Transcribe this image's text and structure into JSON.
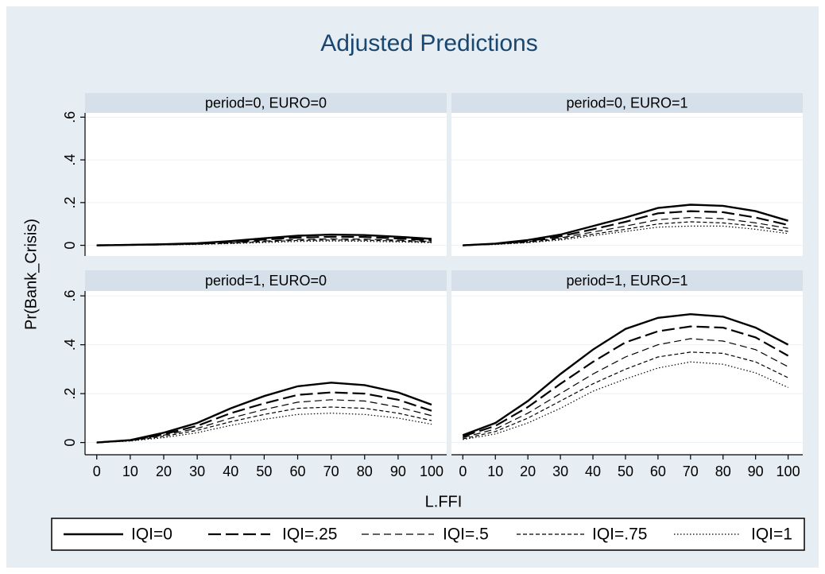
{
  "title": "Adjusted Predictions",
  "y_label": "Pr(Bank_Crisis)",
  "x_label": "L.FFI",
  "chart_data": [
    {
      "type": "line",
      "title": "period=0, EURO=0",
      "grid": true,
      "x": [
        0,
        10,
        20,
        30,
        40,
        50,
        60,
        70,
        80,
        90,
        100
      ],
      "xlim": [
        -3.5,
        104.5
      ],
      "ylim": [
        -0.05,
        0.62
      ],
      "yticks": [
        0,
        {
          "value": 0.2,
          "label": ".2"
        },
        {
          "value": 0.4,
          "label": ".4"
        },
        {
          "value": 0.6,
          "label": ".6"
        }
      ],
      "series": [
        {
          "name": "IQI=0",
          "color": "#000000",
          "line_style": "solid",
          "width": 2.4,
          "values": [
            0,
            0.002,
            0.005,
            0.01,
            0.02,
            0.033,
            0.045,
            0.05,
            0.048,
            0.04,
            0.03
          ]
        },
        {
          "name": "IQI=.25",
          "color": "#000000",
          "line_style": "long-dash",
          "width": 2.2,
          "values": [
            0,
            0.002,
            0.004,
            0.008,
            0.016,
            0.027,
            0.036,
            0.04,
            0.039,
            0.032,
            0.024
          ]
        },
        {
          "name": "IQI=.5",
          "color": "#000000",
          "line_style": "dash",
          "width": 1.2,
          "values": [
            0,
            0.001,
            0.003,
            0.006,
            0.012,
            0.02,
            0.027,
            0.03,
            0.029,
            0.024,
            0.018
          ]
        },
        {
          "name": "IQI=.75",
          "color": "#000000",
          "line_style": "short-dash",
          "width": 1.2,
          "values": [
            0,
            0.001,
            0.0025,
            0.005,
            0.01,
            0.017,
            0.023,
            0.025,
            0.024,
            0.02,
            0.015
          ]
        },
        {
          "name": "IQI=1",
          "color": "#000000",
          "line_style": "dot",
          "width": 1.2,
          "values": [
            0,
            0.001,
            0.002,
            0.004,
            0.008,
            0.013,
            0.018,
            0.02,
            0.019,
            0.016,
            0.012
          ]
        }
      ]
    },
    {
      "type": "line",
      "title": "period=0, EURO=1",
      "grid": true,
      "x": [
        0,
        10,
        20,
        30,
        40,
        50,
        60,
        70,
        80,
        90,
        100
      ],
      "xlim": [
        -3.5,
        104.5
      ],
      "ylim": [
        -0.05,
        0.62
      ],
      "yticks": [
        0,
        {
          "value": 0.2,
          "label": ".2"
        },
        {
          "value": 0.4,
          "label": ".4"
        },
        {
          "value": 0.6,
          "label": ".6"
        }
      ],
      "series": [
        {
          "name": "IQI=0",
          "color": "#000000",
          "line_style": "solid",
          "width": 2.4,
          "values": [
            0,
            0.008,
            0.025,
            0.05,
            0.09,
            0.13,
            0.175,
            0.19,
            0.185,
            0.16,
            0.115
          ]
        },
        {
          "name": "IQI=.25",
          "color": "#000000",
          "line_style": "long-dash",
          "width": 2.2,
          "values": [
            0,
            0.007,
            0.02,
            0.042,
            0.075,
            0.11,
            0.15,
            0.16,
            0.155,
            0.13,
            0.095
          ]
        },
        {
          "name": "IQI=.5",
          "color": "#000000",
          "line_style": "dash",
          "width": 1.2,
          "values": [
            0,
            0.006,
            0.017,
            0.035,
            0.062,
            0.09,
            0.12,
            0.13,
            0.125,
            0.105,
            0.08
          ]
        },
        {
          "name": "IQI=.75",
          "color": "#000000",
          "line_style": "short-dash",
          "width": 1.2,
          "values": [
            0,
            0.005,
            0.014,
            0.03,
            0.052,
            0.075,
            0.1,
            0.11,
            0.105,
            0.09,
            0.065
          ]
        },
        {
          "name": "IQI=1",
          "color": "#000000",
          "line_style": "dot",
          "width": 1.2,
          "values": [
            0,
            0.004,
            0.012,
            0.025,
            0.045,
            0.065,
            0.085,
            0.09,
            0.09,
            0.075,
            0.055
          ]
        }
      ]
    },
    {
      "type": "line",
      "title": "period=1, EURO=0",
      "grid": true,
      "x": [
        0,
        10,
        20,
        30,
        40,
        50,
        60,
        70,
        80,
        90,
        100
      ],
      "xlim": [
        -3.5,
        104.5
      ],
      "xticks": [
        0,
        10,
        20,
        30,
        40,
        50,
        60,
        70,
        80,
        90,
        100
      ],
      "ylim": [
        -0.05,
        0.62
      ],
      "yticks": [
        0,
        {
          "value": 0.2,
          "label": ".2"
        },
        {
          "value": 0.4,
          "label": ".4"
        },
        {
          "value": 0.6,
          "label": ".6"
        }
      ],
      "series": [
        {
          "name": "IQI=0",
          "color": "#000000",
          "line_style": "solid",
          "width": 2.4,
          "values": [
            0,
            0.01,
            0.04,
            0.08,
            0.14,
            0.19,
            0.23,
            0.245,
            0.235,
            0.205,
            0.155
          ]
        },
        {
          "name": "IQI=.25",
          "color": "#000000",
          "line_style": "long-dash",
          "width": 2.2,
          "values": [
            0,
            0.009,
            0.034,
            0.068,
            0.12,
            0.16,
            0.195,
            0.205,
            0.2,
            0.175,
            0.13
          ]
        },
        {
          "name": "IQI=.5",
          "color": "#000000",
          "line_style": "dash",
          "width": 1.2,
          "values": [
            0,
            0.008,
            0.03,
            0.058,
            0.1,
            0.135,
            0.165,
            0.175,
            0.17,
            0.145,
            0.11
          ]
        },
        {
          "name": "IQI=.75",
          "color": "#000000",
          "line_style": "short-dash",
          "width": 1.2,
          "values": [
            0,
            0.007,
            0.025,
            0.05,
            0.085,
            0.115,
            0.14,
            0.145,
            0.14,
            0.12,
            0.09
          ]
        },
        {
          "name": "IQI=1",
          "color": "#000000",
          "line_style": "dot",
          "width": 1.2,
          "values": [
            0,
            0.006,
            0.02,
            0.04,
            0.07,
            0.095,
            0.115,
            0.12,
            0.115,
            0.1,
            0.075
          ]
        }
      ]
    },
    {
      "type": "line",
      "title": "period=1, EURO=1",
      "grid": true,
      "x": [
        0,
        10,
        20,
        30,
        40,
        50,
        60,
        70,
        80,
        90,
        100
      ],
      "xlim": [
        -3.5,
        104.5
      ],
      "xticks": [
        0,
        10,
        20,
        30,
        40,
        50,
        60,
        70,
        80,
        90,
        100
      ],
      "ylim": [
        -0.05,
        0.62
      ],
      "yticks": [
        0,
        {
          "value": 0.2,
          "label": ".2"
        },
        {
          "value": 0.4,
          "label": ".4"
        },
        {
          "value": 0.6,
          "label": ".6"
        }
      ],
      "series": [
        {
          "name": "IQI=0",
          "color": "#000000",
          "line_style": "solid",
          "width": 2.4,
          "values": [
            0.03,
            0.08,
            0.17,
            0.28,
            0.38,
            0.465,
            0.51,
            0.525,
            0.515,
            0.47,
            0.4
          ]
        },
        {
          "name": "IQI=.25",
          "color": "#000000",
          "line_style": "long-dash",
          "width": 2.2,
          "values": [
            0.025,
            0.068,
            0.145,
            0.24,
            0.33,
            0.41,
            0.455,
            0.475,
            0.47,
            0.43,
            0.355
          ]
        },
        {
          "name": "IQI=.5",
          "color": "#000000",
          "line_style": "dash",
          "width": 1.2,
          "values": [
            0.02,
            0.055,
            0.12,
            0.2,
            0.28,
            0.35,
            0.4,
            0.425,
            0.415,
            0.38,
            0.31
          ]
        },
        {
          "name": "IQI=.75",
          "color": "#000000",
          "line_style": "short-dash",
          "width": 1.2,
          "values": [
            0.015,
            0.045,
            0.1,
            0.17,
            0.24,
            0.3,
            0.35,
            0.37,
            0.365,
            0.33,
            0.265
          ]
        },
        {
          "name": "IQI=1",
          "color": "#000000",
          "line_style": "dot",
          "width": 1.2,
          "values": [
            0.012,
            0.035,
            0.08,
            0.14,
            0.21,
            0.26,
            0.305,
            0.33,
            0.32,
            0.285,
            0.225
          ]
        }
      ]
    }
  ]
}
